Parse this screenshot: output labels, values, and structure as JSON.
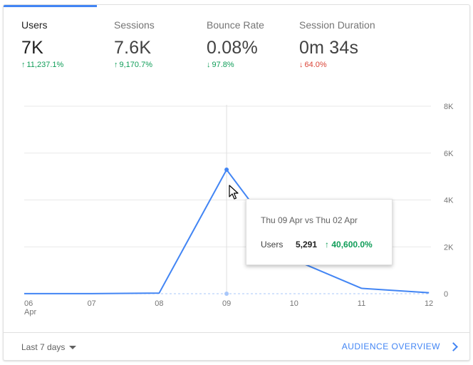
{
  "metrics": [
    {
      "label": "Users",
      "value": "7K",
      "change": "11,237.1%",
      "direction": "up",
      "color": "#0f9d58",
      "active": true
    },
    {
      "label": "Sessions",
      "value": "7.6K",
      "change": "9,170.7%",
      "direction": "up",
      "color": "#0f9d58",
      "active": false
    },
    {
      "label": "Bounce Rate",
      "value": "0.08%",
      "change": "97.8%",
      "direction": "down",
      "color": "#0f9d58",
      "active": false
    },
    {
      "label": "Session Duration",
      "value": "0m 34s",
      "change": "64.0%",
      "direction": "down",
      "color": "#db4437",
      "active": false
    }
  ],
  "chart_data": {
    "type": "line",
    "x": [
      "06",
      "07",
      "08",
      "09",
      "10",
      "11",
      "12"
    ],
    "x_sublabel": {
      "06": "Apr"
    },
    "series": [
      {
        "name": "Users",
        "color": "#4285f4",
        "values": [
          5,
          5,
          25,
          5291,
          1450,
          230,
          40
        ]
      },
      {
        "values": [
          0,
          0,
          0,
          0,
          0,
          0,
          0
        ],
        "color": "#a8c7fa",
        "style": "dashed"
      }
    ],
    "y_ticks": [
      "8K",
      "6K",
      "4K",
      "2K",
      "0"
    ],
    "y_tick_values": [
      8000,
      6000,
      4000,
      2000,
      0
    ],
    "ylim": [
      0,
      8000
    ],
    "highlight_index": 3
  },
  "tooltip": {
    "title": "Thu 09 Apr vs Thu 02 Apr",
    "metric": "Users",
    "value": "5,291",
    "change": "40,600.0%"
  },
  "footer": {
    "date_range": "Last 7 days",
    "link": "AUDIENCE OVERVIEW"
  },
  "colors": {
    "accent": "#4285f4",
    "positive": "#0f9d58",
    "negative": "#db4437"
  }
}
